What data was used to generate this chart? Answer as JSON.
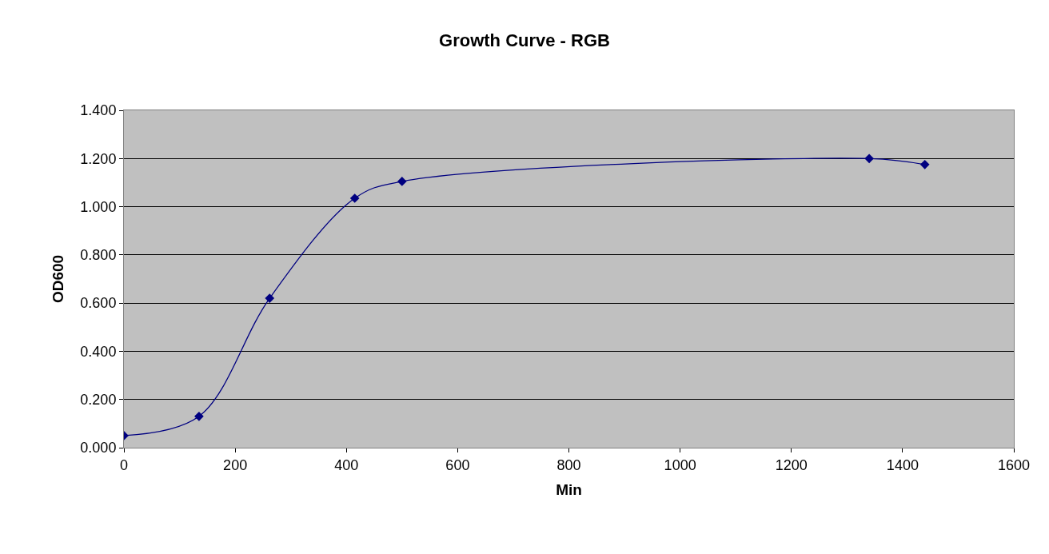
{
  "chart_data": {
    "type": "line",
    "title": "Growth Curve - RGB",
    "xlabel": "Min",
    "ylabel": "OD600",
    "x": [
      0,
      135,
      262,
      415,
      500,
      1340,
      1440
    ],
    "series": [
      {
        "color": "#000080",
        "values": [
          0.05,
          0.13,
          0.62,
          1.035,
          1.105,
          1.2,
          1.175
        ]
      }
    ],
    "xlim": [
      0,
      1600
    ],
    "xticks": [
      0,
      200,
      400,
      600,
      800,
      1000,
      1200,
      1400,
      1600
    ],
    "ylim": [
      0,
      1.4
    ],
    "yticks": [
      {
        "value": 0,
        "label": "0.000"
      },
      {
        "value": 0.2,
        "label": "0.200"
      },
      {
        "value": 0.4,
        "label": "0.400"
      },
      {
        "value": 0.6,
        "label": "0.600"
      },
      {
        "value": 0.8,
        "label": "0.800"
      },
      {
        "value": 1.0,
        "label": "1.000"
      },
      {
        "value": 1.2,
        "label": "1.200"
      },
      {
        "value": 1.4,
        "label": "1.400"
      }
    ],
    "grid": "y",
    "marker": "diamond",
    "line_style": "solid"
  }
}
